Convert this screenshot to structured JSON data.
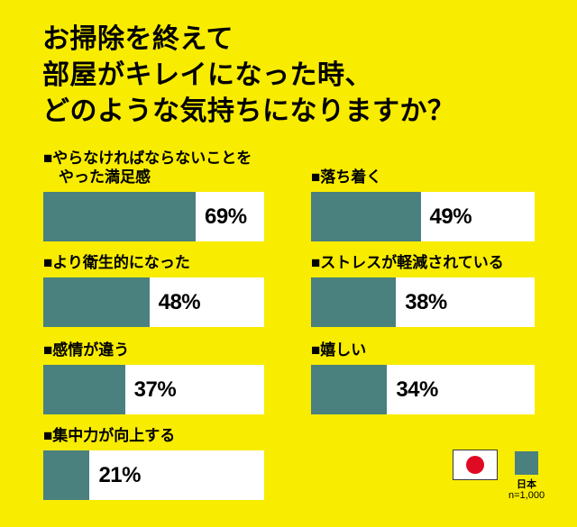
{
  "colors": {
    "background": "#F8EC00",
    "bar": "#4A807E",
    "track": "#FFFFFF",
    "text": "#000000",
    "flag_red": "#DF0B23"
  },
  "title": {
    "lines": [
      "お掃除を終えて",
      "部屋がキレイになった時、",
      "どのような気持ちになりますか？"
    ]
  },
  "columns": {
    "left": {
      "items": [
        {
          "id": "satisfaction",
          "label_lines": [
            "■やらなければならないことを",
            "やった満足感"
          ],
          "value": 69,
          "value_label": "69%"
        },
        {
          "id": "more-hygienic",
          "label_lines": [
            "■より衛生的になった"
          ],
          "value": 48,
          "value_label": "48%"
        },
        {
          "id": "feelings-differ",
          "label_lines": [
            "■感情が違う"
          ],
          "value": 37,
          "value_label": "37%"
        },
        {
          "id": "better-concentration",
          "label_lines": [
            "■集中力が向上する"
          ],
          "value": 21,
          "value_label": "21%"
        }
      ]
    },
    "right": {
      "items": [
        {
          "id": "calm-down",
          "label_lines": [
            "■落ち着く"
          ],
          "value": 49,
          "value_label": "49%"
        },
        {
          "id": "stress-reduced",
          "label_lines": [
            "■ストレスが軽減されている"
          ],
          "value": 38,
          "value_label": "38%"
        },
        {
          "id": "happy",
          "label_lines": [
            "■嬉しい"
          ],
          "value": 34,
          "value_label": "34%"
        }
      ]
    }
  },
  "legend": {
    "flag": "japan-flag",
    "series_label": "日本",
    "sample_size": "n=1,000",
    "swatch_color": "#4A807E"
  },
  "chart_data": {
    "type": "bar",
    "orientation": "horizontal",
    "title": "お掃除を終えて部屋がキレイになった時、どのような気持ちになりますか？",
    "unit": "%",
    "value_range": [
      0,
      100
    ],
    "grid": false,
    "legend_position": "bottom-right",
    "series": [
      {
        "name": "日本",
        "sample_size": "n=1,000",
        "categories": [
          "やらなければならないことをやった満足感",
          "落ち着く",
          "より衛生的になった",
          "ストレスが軽減されている",
          "感情が違う",
          "嬉しい",
          "集中力が向上する"
        ],
        "values": [
          69,
          49,
          48,
          38,
          37,
          34,
          21
        ]
      }
    ]
  }
}
